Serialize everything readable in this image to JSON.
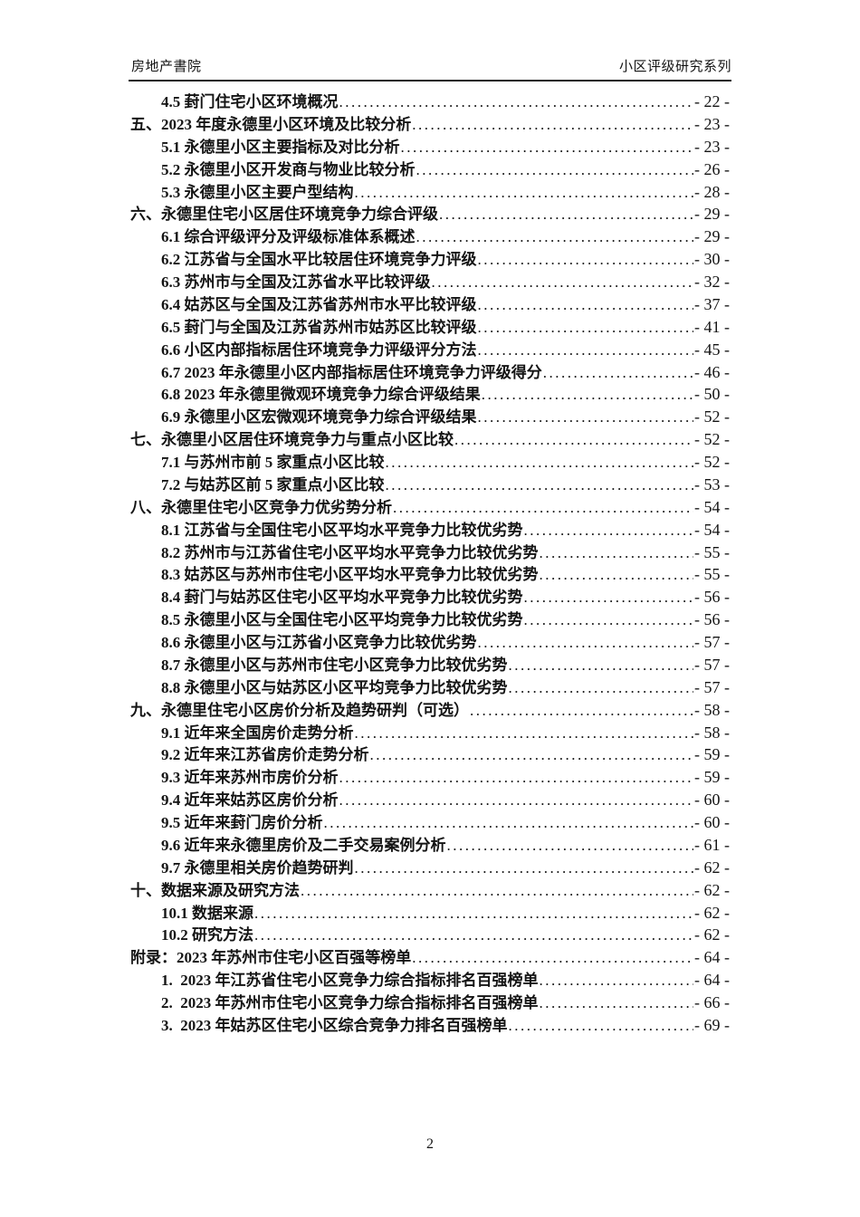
{
  "page": {
    "background_color": "#ffffff",
    "text_color": "#141414"
  },
  "header": {
    "left_title": "房地产書院",
    "right_title": "小区评级研究系列"
  },
  "toc": {
    "entries": [
      {
        "level": 2,
        "title": "4.5 葑门住宅小区环境概况",
        "page_label": "- 22 -"
      },
      {
        "level": 1,
        "title": "五、2023 年度永德里小区环境及比较分析",
        "page_label": "- 23 -"
      },
      {
        "level": 2,
        "title": "5.1 永德里小区主要指标及对比分析",
        "page_label": "- 23 -"
      },
      {
        "level": 2,
        "title": "5.2 永德里小区开发商与物业比较分析",
        "page_label": "- 26 -"
      },
      {
        "level": 2,
        "title": "5.3 永德里小区主要户型结构",
        "page_label": "- 28 -"
      },
      {
        "level": 1,
        "title": "六、永德里住宅小区居住环境竞争力综合评级",
        "page_label": "- 29 -"
      },
      {
        "level": 2,
        "title": "6.1 综合评级评分及评级标准体系概述",
        "page_label": "- 29 -"
      },
      {
        "level": 2,
        "title": "6.2 江苏省与全国水平比较居住环境竞争力评级",
        "page_label": "- 30 -"
      },
      {
        "level": 2,
        "title": "6.3 苏州市与全国及江苏省水平比较评级",
        "page_label": "- 32 -"
      },
      {
        "level": 2,
        "title": "6.4 姑苏区与全国及江苏省苏州市水平比较评级",
        "page_label": "- 37 -"
      },
      {
        "level": 2,
        "title": "6.5 葑门与全国及江苏省苏州市姑苏区比较评级",
        "page_label": "- 41 -"
      },
      {
        "level": 2,
        "title": "6.6 小区内部指标居住环境竞争力评级评分方法",
        "page_label": "- 45 -"
      },
      {
        "level": 2,
        "title": "6.7 2023 年永德里小区内部指标居住环境竞争力评级得分",
        "page_label": "- 46 -"
      },
      {
        "level": 2,
        "title": "6.8 2023 年永德里微观环境竞争力综合评级结果",
        "page_label": "- 50 -"
      },
      {
        "level": 2,
        "title": "6.9 永德里小区宏微观环境竞争力综合评级结果",
        "page_label": "- 52 -"
      },
      {
        "level": 1,
        "title": "七、永德里小区居住环境竞争力与重点小区比较",
        "page_label": "- 52 -"
      },
      {
        "level": 2,
        "title": "7.1 与苏州市前 5 家重点小区比较",
        "page_label": "- 52 -"
      },
      {
        "level": 2,
        "title": "7.2 与姑苏区前 5 家重点小区比较",
        "page_label": "- 53 -"
      },
      {
        "level": 1,
        "title": "八、永德里住宅小区竞争力优劣势分析",
        "page_label": "- 54 -"
      },
      {
        "level": 2,
        "title": "8.1 江苏省与全国住宅小区平均水平竞争力比较优劣势",
        "page_label": "- 54 -"
      },
      {
        "level": 2,
        "title": "8.2 苏州市与江苏省住宅小区平均水平竞争力比较优劣势",
        "page_label": "- 55 -"
      },
      {
        "level": 2,
        "title": "8.3 姑苏区与苏州市住宅小区平均水平竞争力比较优劣势",
        "page_label": "- 55 -"
      },
      {
        "level": 2,
        "title": "8.4 葑门与姑苏区住宅小区平均水平竞争力比较优劣势",
        "page_label": "- 56 -"
      },
      {
        "level": 2,
        "title": "8.5 永德里小区与全国住宅小区平均竞争力比较优劣势",
        "page_label": "- 56 -"
      },
      {
        "level": 2,
        "title": "8.6 永德里小区与江苏省小区竞争力比较优劣势",
        "page_label": "- 57 -"
      },
      {
        "level": 2,
        "title": "8.7 永德里小区与苏州市住宅小区竞争力比较优劣势",
        "page_label": "- 57 -"
      },
      {
        "level": 2,
        "title": "8.8 永德里小区与姑苏区小区平均竞争力比较优劣势",
        "page_label": "- 57 -"
      },
      {
        "level": 1,
        "title": "九、永德里住宅小区房价分析及趋势研判（可选）",
        "page_label": "- 58 -"
      },
      {
        "level": 2,
        "title": "9.1 近年来全国房价走势分析",
        "page_label": "- 58 -"
      },
      {
        "level": 2,
        "title": "9.2 近年来江苏省房价走势分析",
        "page_label": "- 59 -"
      },
      {
        "level": 2,
        "title": "9.3 近年来苏州市房价分析",
        "page_label": "- 59 -"
      },
      {
        "level": 2,
        "title": "9.4 近年来姑苏区房价分析",
        "page_label": "- 60 -"
      },
      {
        "level": 2,
        "title": "9.5 近年来葑门房价分析",
        "page_label": "- 60 -"
      },
      {
        "level": 2,
        "title": "9.6 近年来永德里房价及二手交易案例分析",
        "page_label": "- 61 -"
      },
      {
        "level": 2,
        "title": "9.7 永德里相关房价趋势研判",
        "page_label": "- 62 -"
      },
      {
        "level": 1,
        "title": "十、数据来源及研究方法",
        "page_label": "- 62 -"
      },
      {
        "level": 2,
        "title": "10.1 数据来源",
        "page_label": "- 62 -"
      },
      {
        "level": 2,
        "title": "10.2 研究方法",
        "page_label": "- 62 -"
      },
      {
        "level": 1,
        "title": "附录：2023 年苏州市住宅小区百强等榜单",
        "page_label": "- 64 -"
      },
      {
        "level": 2,
        "title": "1.  2023 年江苏省住宅小区竞争力综合指标排名百强榜单",
        "page_label": "- 64 -"
      },
      {
        "level": 2,
        "title": "2.  2023 年苏州市住宅小区竞争力综合指标排名百强榜单",
        "page_label": "- 66 -"
      },
      {
        "level": 2,
        "title": "3.  2023 年姑苏区住宅小区综合竞争力排名百强榜单",
        "page_label": "- 69 -"
      }
    ]
  },
  "footer": {
    "page_number": "2"
  }
}
